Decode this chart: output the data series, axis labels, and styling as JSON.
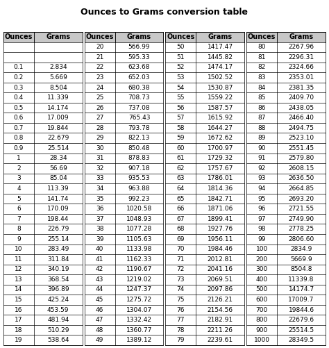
{
  "title": "Ounces to Grams conversion table",
  "col1": {
    "ounces": [
      "",
      "0.1",
      "0.2",
      "0.3",
      "0.4",
      "0.5",
      "0.6",
      "0.7",
      "0.8",
      "0.9",
      "1",
      "2",
      "3",
      "4",
      "5",
      "6",
      "7",
      "8",
      "9",
      "10",
      "11",
      "12",
      "13",
      "14",
      "15",
      "16",
      "17",
      "18",
      "19"
    ],
    "grams": [
      "",
      "2.834",
      "5.669",
      "8.504",
      "11.339",
      "14.174",
      "17.009",
      "19.844",
      "22.679",
      "25.514",
      "28.34",
      "56.69",
      "85.04",
      "113.39",
      "141.74",
      "170.09",
      "198.44",
      "226.79",
      "255.14",
      "283.49",
      "311.84",
      "340.19",
      "368.54",
      "396.89",
      "425.24",
      "453.59",
      "481.94",
      "510.29",
      "538.64"
    ]
  },
  "col2": {
    "ounces": [
      "20",
      "21",
      "22",
      "23",
      "24",
      "25",
      "26",
      "27",
      "28",
      "29",
      "30",
      "31",
      "32",
      "33",
      "34",
      "35",
      "36",
      "37",
      "38",
      "39",
      "40",
      "41",
      "42",
      "43",
      "44",
      "45",
      "46",
      "47",
      "48",
      "49"
    ],
    "grams": [
      "566.99",
      "595.33",
      "623.68",
      "652.03",
      "680.38",
      "708.73",
      "737.08",
      "765.43",
      "793.78",
      "822.13",
      "850.48",
      "878.83",
      "907.18",
      "935.53",
      "963.88",
      "992.23",
      "1020.58",
      "1048.93",
      "1077.28",
      "1105.63",
      "1133.98",
      "1162.33",
      "1190.67",
      "1219.02",
      "1247.37",
      "1275.72",
      "1304.07",
      "1332.42",
      "1360.77",
      "1389.12"
    ]
  },
  "col3": {
    "ounces": [
      "50",
      "51",
      "52",
      "53",
      "54",
      "55",
      "56",
      "57",
      "58",
      "59",
      "60",
      "61",
      "62",
      "63",
      "64",
      "65",
      "66",
      "67",
      "68",
      "69",
      "70",
      "71",
      "72",
      "73",
      "74",
      "75",
      "76",
      "77",
      "78",
      "79"
    ],
    "grams": [
      "1417.47",
      "1445.82",
      "1474.17",
      "1502.52",
      "1530.87",
      "1559.22",
      "1587.57",
      "1615.92",
      "1644.27",
      "1672.62",
      "1700.97",
      "1729.32",
      "1757.67",
      "1786.01",
      "1814.36",
      "1842.71",
      "1871.06",
      "1899.41",
      "1927.76",
      "1956.11",
      "1984.46",
      "2012.81",
      "2041.16",
      "2069.51",
      "2097.86",
      "2126.21",
      "2154.56",
      "2182.91",
      "2211.26",
      "2239.61"
    ]
  },
  "col4": {
    "ounces": [
      "80",
      "81",
      "82",
      "83",
      "84",
      "85",
      "86",
      "87",
      "88",
      "89",
      "90",
      "91",
      "92",
      "93",
      "94",
      "95",
      "96",
      "97",
      "98",
      "99",
      "100",
      "200",
      "300",
      "400",
      "500",
      "600",
      "700",
      "800",
      "900",
      "1000"
    ],
    "grams": [
      "2267.96",
      "2296.31",
      "2324.66",
      "2353.01",
      "2381.35",
      "2409.70",
      "2438.05",
      "2466.40",
      "2494.75",
      "2523.10",
      "2551.45",
      "2579.80",
      "2608.15",
      "2636.50",
      "2664.85",
      "2693.20",
      "2721.55",
      "2749.90",
      "2778.25",
      "2806.60",
      "2834.9",
      "5669.9",
      "8504.8",
      "11339.8",
      "14174.7",
      "17009.7",
      "19844.6",
      "22679.6",
      "25514.5",
      "28349.5"
    ]
  },
  "header_color": "#c8c8c8",
  "cell_color": "#ffffff",
  "edge_color": "#000000",
  "title_fontsize": 9,
  "cell_fontsize": 6.5,
  "header_fontsize": 7
}
